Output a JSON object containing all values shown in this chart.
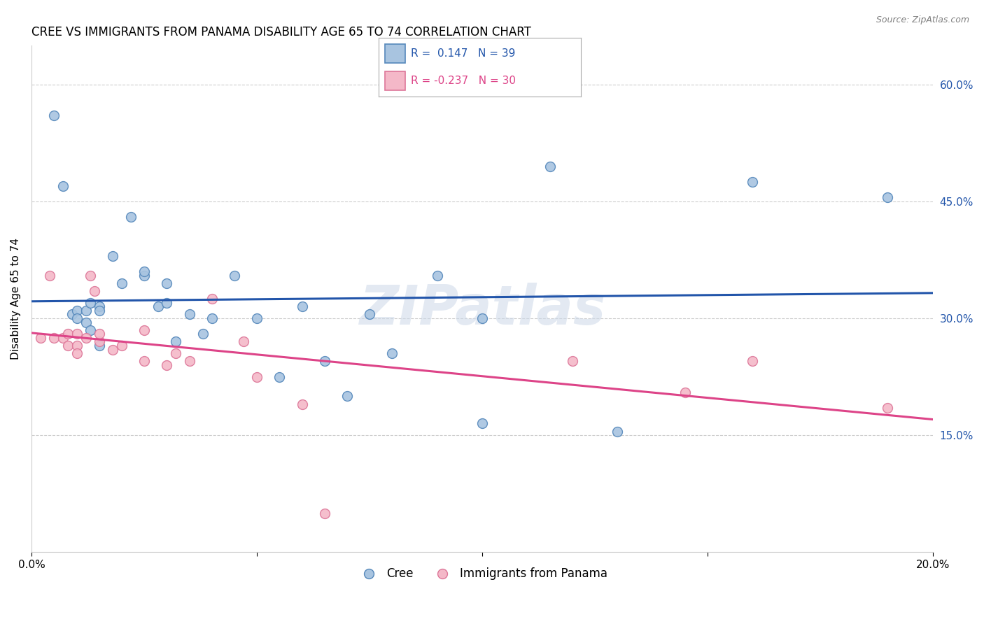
{
  "title": "CREE VS IMMIGRANTS FROM PANAMA DISABILITY AGE 65 TO 74 CORRELATION CHART",
  "source": "Source: ZipAtlas.com",
  "ylabel": "Disability Age 65 to 74",
  "watermark": "ZIPatlas",
  "r1_val": "0.147",
  "r2_val": "-0.237",
  "n1": "39",
  "n2": "30",
  "xmin": 0.0,
  "xmax": 0.2,
  "ymin": 0.0,
  "ymax": 0.65,
  "yticks": [
    0.15,
    0.3,
    0.45,
    0.6
  ],
  "ytick_labels": [
    "15.0%",
    "30.0%",
    "45.0%",
    "60.0%"
  ],
  "xticks": [
    0.0,
    0.05,
    0.1,
    0.15,
    0.2
  ],
  "blue_x": [
    0.005,
    0.007,
    0.009,
    0.01,
    0.01,
    0.012,
    0.012,
    0.013,
    0.013,
    0.015,
    0.015,
    0.015,
    0.018,
    0.02,
    0.022,
    0.025,
    0.025,
    0.028,
    0.03,
    0.03,
    0.032,
    0.035,
    0.038,
    0.04,
    0.045,
    0.05,
    0.055,
    0.06,
    0.065,
    0.07,
    0.075,
    0.08,
    0.09,
    0.1,
    0.1,
    0.115,
    0.13,
    0.16,
    0.19
  ],
  "blue_y": [
    0.56,
    0.47,
    0.305,
    0.31,
    0.3,
    0.31,
    0.295,
    0.285,
    0.32,
    0.315,
    0.31,
    0.265,
    0.38,
    0.345,
    0.43,
    0.355,
    0.36,
    0.315,
    0.345,
    0.32,
    0.27,
    0.305,
    0.28,
    0.3,
    0.355,
    0.3,
    0.225,
    0.315,
    0.245,
    0.2,
    0.305,
    0.255,
    0.355,
    0.3,
    0.165,
    0.495,
    0.155,
    0.475,
    0.455
  ],
  "pink_x": [
    0.002,
    0.004,
    0.005,
    0.007,
    0.008,
    0.008,
    0.01,
    0.01,
    0.01,
    0.012,
    0.013,
    0.014,
    0.015,
    0.015,
    0.018,
    0.02,
    0.025,
    0.025,
    0.03,
    0.032,
    0.035,
    0.04,
    0.047,
    0.05,
    0.06,
    0.065,
    0.12,
    0.145,
    0.16,
    0.19
  ],
  "pink_y": [
    0.275,
    0.355,
    0.275,
    0.275,
    0.28,
    0.265,
    0.265,
    0.255,
    0.28,
    0.275,
    0.355,
    0.335,
    0.27,
    0.28,
    0.26,
    0.265,
    0.285,
    0.245,
    0.24,
    0.255,
    0.245,
    0.325,
    0.27,
    0.225,
    0.19,
    0.05,
    0.245,
    0.205,
    0.245,
    0.185
  ],
  "blue_color": "#a8c4e0",
  "blue_edge": "#5588bb",
  "pink_color": "#f4b8c8",
  "pink_edge": "#dd7799",
  "trendline_blue": "#2255aa",
  "trendline_pink": "#dd4488",
  "background_color": "#ffffff",
  "grid_color": "#cccccc",
  "title_fontsize": 12,
  "axis_label_fontsize": 11,
  "tick_fontsize": 11,
  "marker_size": 100
}
